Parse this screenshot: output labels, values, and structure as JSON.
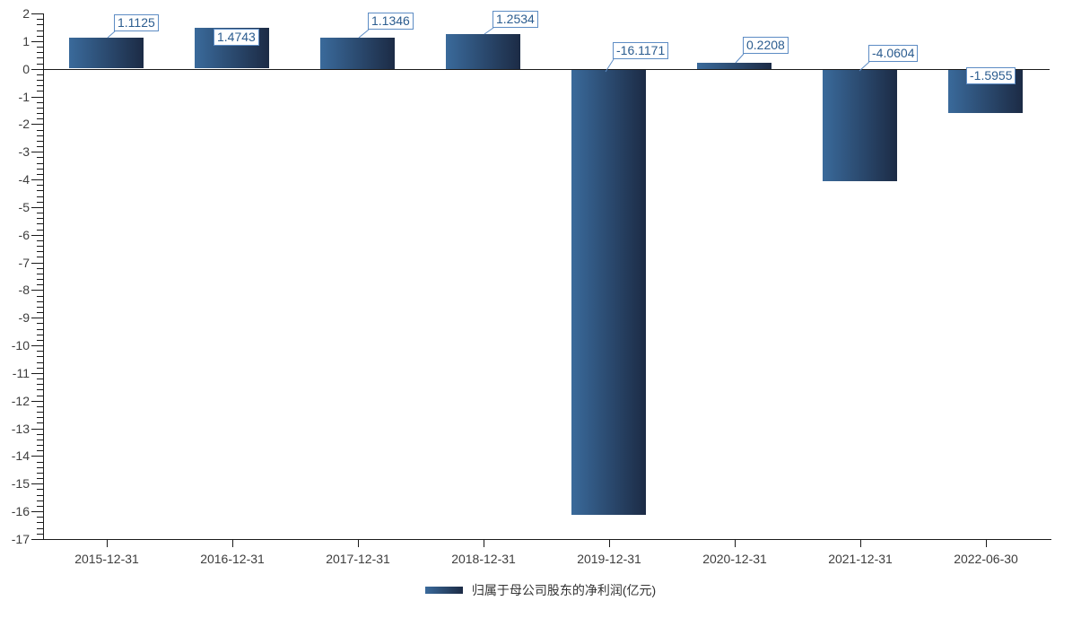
{
  "chart_data": {
    "type": "bar",
    "title": "",
    "categories": [
      "2015-12-31",
      "2016-12-31",
      "2017-12-31",
      "2018-12-31",
      "2019-12-31",
      "2020-12-31",
      "2021-12-31",
      "2022-06-30"
    ],
    "series": [
      {
        "name": "归属于母公司股东的净利润(亿元)",
        "values": [
          1.1125,
          1.4743,
          1.1346,
          1.2534,
          -16.1171,
          0.2208,
          -4.0604,
          -1.5955
        ]
      }
    ],
    "data_labels": [
      "1.1125",
      "1.4743",
      "1.1346",
      "1.2534",
      "-16.1171",
      "0.2208",
      "-4.0604",
      "-1.5955"
    ],
    "xlabel": "",
    "ylabel": "",
    "ylim": [
      -17,
      2
    ],
    "y_tick_interval": 1,
    "y_minor_tick_interval": 0.2,
    "y_tick_labels": [
      "2",
      "1",
      "0",
      "-1",
      "-2",
      "-3",
      "-4",
      "-5",
      "-6",
      "-7",
      "-8",
      "-9",
      "-10",
      "-11",
      "-12",
      "-13",
      "-14",
      "-15",
      "-16",
      "-17"
    ],
    "grid": false,
    "legend_position": "bottom",
    "colors": {
      "bar_gradient_start": "#3a6a9b",
      "bar_gradient_end": "#1c2b45",
      "axis": "#1a1a1a",
      "tick_label": "#3d3d3d",
      "data_label_text": "#2b5c8f",
      "data_label_border": "#5d8cc4",
      "data_label_bg": "#ffffff",
      "background": "#ffffff"
    }
  },
  "legend": {
    "label": "归属于母公司股东的净利润(亿元)"
  }
}
